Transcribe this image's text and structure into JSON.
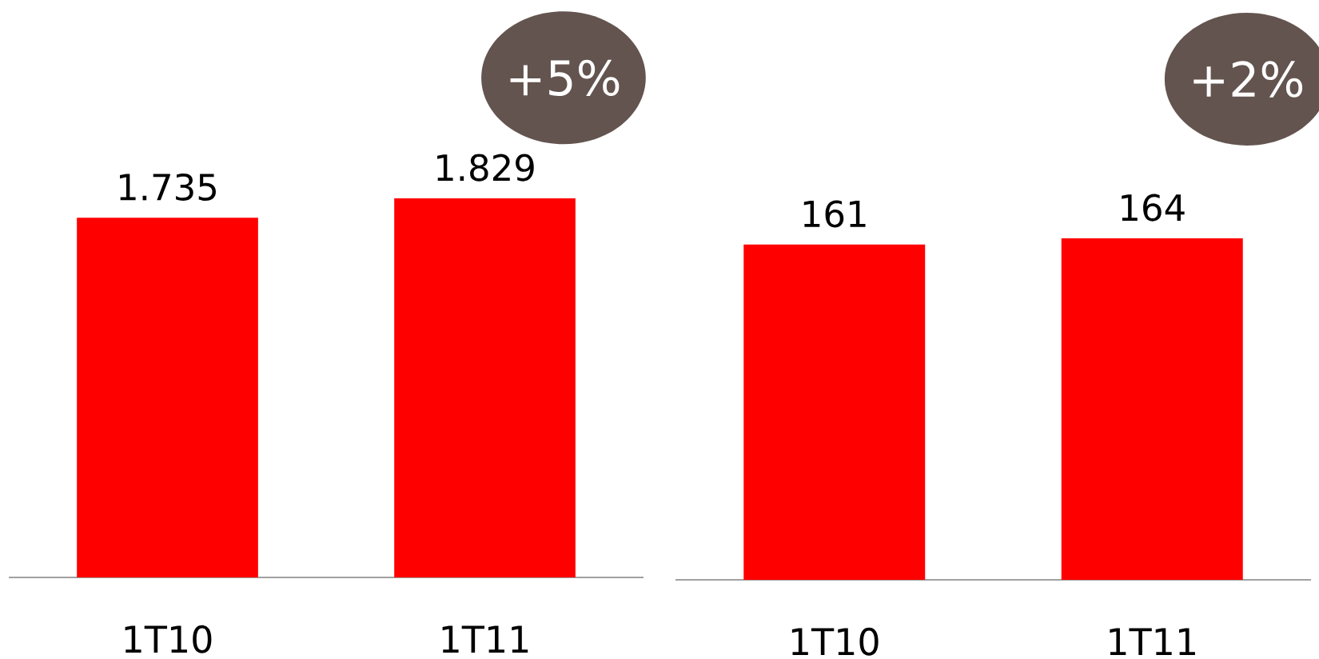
{
  "chart_data": [
    {
      "type": "bar",
      "categories": [
        "1T10",
        "1T11"
      ],
      "values": [
        1735,
        1829
      ],
      "value_labels": [
        "1.735",
        "1.829"
      ],
      "color": "#ff0000",
      "annotations": [
        "+5%"
      ]
    },
    {
      "type": "bar",
      "categories": [
        "1T10",
        "1T11"
      ],
      "values": [
        161,
        164
      ],
      "value_labels": [
        "161",
        "164"
      ],
      "color": "#ff0000",
      "annotations": [
        "+2%"
      ]
    }
  ]
}
